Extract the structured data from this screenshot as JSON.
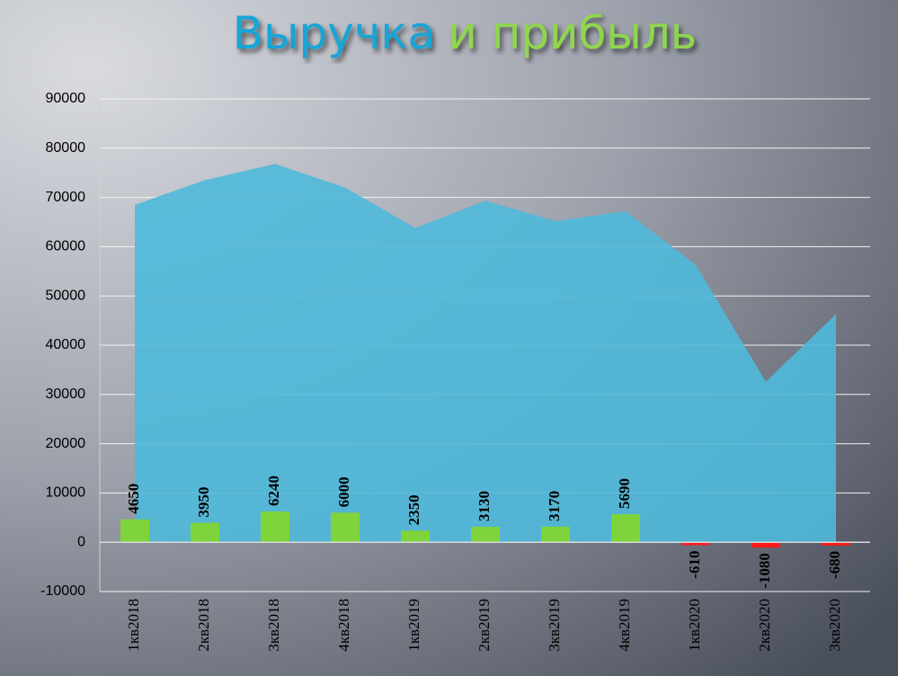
{
  "chart_data": {
    "type": "area_bar",
    "title_parts": [
      "Выручка",
      "и прибыль"
    ],
    "title_colors": [
      "#19a5d6",
      "#8fd64e"
    ],
    "categories": [
      "1кв2018",
      "2кв2018",
      "3кв2018",
      "4кв2018",
      "1кв2019",
      "2кв2019",
      "3кв2019",
      "4кв2019",
      "1кв2020",
      "2кв2020",
      "3кв2020"
    ],
    "series": [
      {
        "type": "area",
        "color": "#4fb9da",
        "values": [
          68500,
          73500,
          76800,
          72000,
          63800,
          69300,
          65200,
          67200,
          56300,
          32600,
          46300
        ]
      },
      {
        "type": "bar",
        "color": "#7ed43a",
        "negative_color": "#ff1a1a",
        "values": [
          4650,
          3950,
          6240,
          6000,
          2350,
          3130,
          3170,
          5690,
          -610,
          -1080,
          -680
        ]
      }
    ],
    "ylim": [
      -10000,
      90000
    ],
    "yticks": [
      -10000,
      0,
      10000,
      20000,
      30000,
      40000,
      50000,
      60000,
      70000,
      80000,
      90000
    ],
    "grid": true
  }
}
